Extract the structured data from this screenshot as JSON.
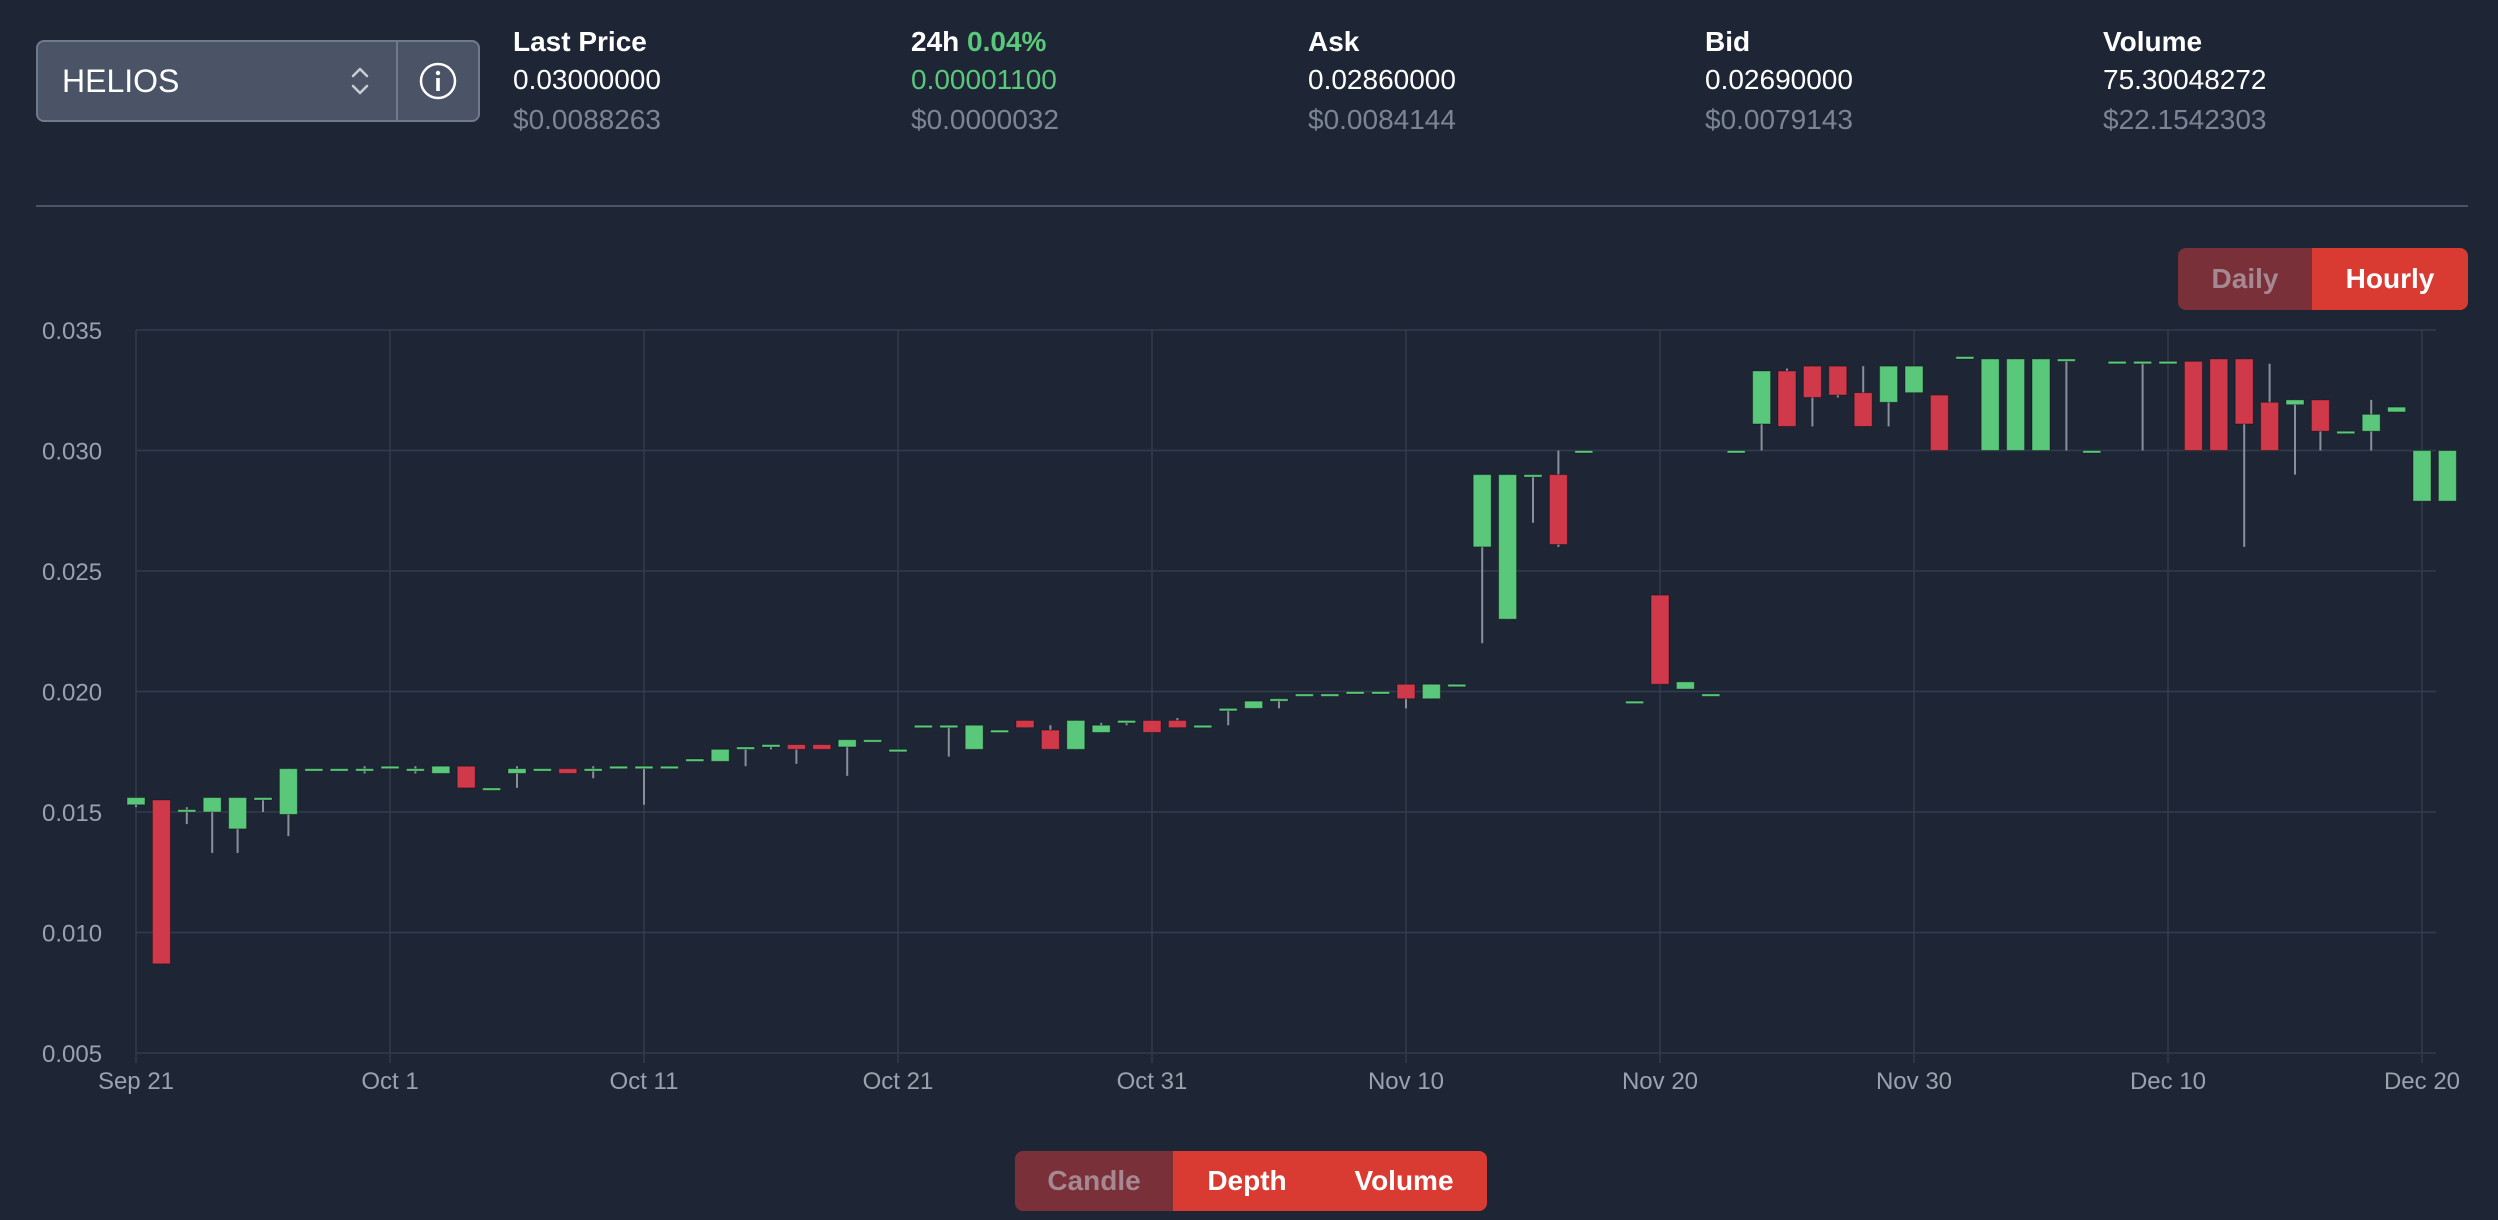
{
  "market": {
    "symbol": "HELIOS"
  },
  "stats": [
    {
      "label": "Last Price",
      "change": "",
      "value": "0.03000000",
      "usd": "$0.0088263",
      "green": false
    },
    {
      "label": "24h",
      "change": "0.04%",
      "value": "0.00001100",
      "usd": "$0.0000032",
      "green": true
    },
    {
      "label": "Ask",
      "change": "",
      "value": "0.02860000",
      "usd": "$0.0084144",
      "green": false
    },
    {
      "label": "Bid",
      "change": "",
      "value": "0.02690000",
      "usd": "$0.0079143",
      "green": false
    },
    {
      "label": "Volume",
      "change": "",
      "value": "75.30048272",
      "usd": "$22.1542303",
      "green": false
    }
  ],
  "interval_toggle": {
    "daily": "Daily",
    "hourly": "Hourly",
    "active": "hourly"
  },
  "chart_view_toggle": {
    "candle": "Candle",
    "depth": "Depth",
    "volume": "Volume",
    "inactive": "candle"
  },
  "colors": {
    "up": "#5ac87a",
    "down": "#d0394a",
    "accent": "#d93b32",
    "background": "#1e2636"
  },
  "chart_data": {
    "type": "candlestick",
    "ylim": [
      0.005,
      0.035
    ],
    "y_ticks": [
      "0.035",
      "0.030",
      "0.025",
      "0.020",
      "0.015",
      "0.010",
      "0.005"
    ],
    "x_ticks": [
      "Sep 21",
      "Oct 1",
      "Oct 11",
      "Oct 21",
      "Oct 31",
      "Nov 10",
      "Nov 20",
      "Nov 30",
      "Dec 10",
      "Dec 20"
    ],
    "grid": true,
    "candles": [
      {
        "date": "Sep 21",
        "open": 0.0153,
        "high": 0.0156,
        "low": 0.0152,
        "close": 0.0156
      },
      {
        "date": "Sep 22",
        "open": 0.0155,
        "high": 0.0155,
        "low": 0.0087,
        "close": 0.0087
      },
      {
        "date": "Sep 23",
        "open": 0.015,
        "high": 0.0152,
        "low": 0.0145,
        "close": 0.0151
      },
      {
        "date": "Sep 24",
        "open": 0.015,
        "high": 0.0156,
        "low": 0.0133,
        "close": 0.0156
      },
      {
        "date": "Sep 25",
        "open": 0.0143,
        "high": 0.0156,
        "low": 0.0133,
        "close": 0.0156
      },
      {
        "date": "Sep 26",
        "open": 0.0155,
        "high": 0.0156,
        "low": 0.015,
        "close": 0.0156
      },
      {
        "date": "Sep 27",
        "open": 0.0149,
        "high": 0.0168,
        "low": 0.014,
        "close": 0.0168
      },
      {
        "date": "Sep 28",
        "open": 0.0168,
        "high": 0.0168,
        "low": 0.0168,
        "close": 0.0168
      },
      {
        "date": "Sep 29",
        "open": 0.0168,
        "high": 0.0168,
        "low": 0.0168,
        "close": 0.0168
      },
      {
        "date": "Sep 30",
        "open": 0.0168,
        "high": 0.0169,
        "low": 0.0166,
        "close": 0.0168
      },
      {
        "date": "Oct 1",
        "open": 0.0169,
        "high": 0.0169,
        "low": 0.0168,
        "close": 0.0169
      },
      {
        "date": "Oct 2",
        "open": 0.0168,
        "high": 0.0169,
        "low": 0.0166,
        "close": 0.0168
      },
      {
        "date": "Oct 3",
        "open": 0.0166,
        "high": 0.0169,
        "low": 0.0166,
        "close": 0.0169
      },
      {
        "date": "Oct 4",
        "open": 0.0169,
        "high": 0.0169,
        "low": 0.016,
        "close": 0.016
      },
      {
        "date": "Oct 5",
        "open": 0.016,
        "high": 0.016,
        "low": 0.016,
        "close": 0.016
      },
      {
        "date": "Oct 6",
        "open": 0.0166,
        "high": 0.0169,
        "low": 0.016,
        "close": 0.0168
      },
      {
        "date": "Oct 7",
        "open": 0.0168,
        "high": 0.0168,
        "low": 0.0168,
        "close": 0.0168
      },
      {
        "date": "Oct 8",
        "open": 0.0168,
        "high": 0.0168,
        "low": 0.0166,
        "close": 0.0166
      },
      {
        "date": "Oct 9",
        "open": 0.0168,
        "high": 0.0169,
        "low": 0.0164,
        "close": 0.0168
      },
      {
        "date": "Oct 10",
        "open": 0.0169,
        "high": 0.0169,
        "low": 0.0168,
        "close": 0.0169
      },
      {
        "date": "Oct 11",
        "open": 0.0169,
        "high": 0.0169,
        "low": 0.0153,
        "close": 0.0169
      },
      {
        "date": "Oct 12",
        "open": 0.0169,
        "high": 0.0169,
        "low": 0.0169,
        "close": 0.0169
      },
      {
        "date": "Oct 13",
        "open": 0.0172,
        "high": 0.0172,
        "low": 0.0172,
        "close": 0.0172
      },
      {
        "date": "Oct 14",
        "open": 0.0171,
        "high": 0.0176,
        "low": 0.0171,
        "close": 0.0176
      },
      {
        "date": "Oct 15",
        "open": 0.0176,
        "high": 0.0177,
        "low": 0.0169,
        "close": 0.0177
      },
      {
        "date": "Oct 16",
        "open": 0.0177,
        "high": 0.0178,
        "low": 0.0176,
        "close": 0.0178
      },
      {
        "date": "Oct 17",
        "open": 0.0178,
        "high": 0.0178,
        "low": 0.017,
        "close": 0.0176
      },
      {
        "date": "Oct 18",
        "open": 0.0178,
        "high": 0.0178,
        "low": 0.0176,
        "close": 0.0176
      },
      {
        "date": "Oct 19",
        "open": 0.0177,
        "high": 0.018,
        "low": 0.0165,
        "close": 0.018
      },
      {
        "date": "Oct 20",
        "open": 0.018,
        "high": 0.018,
        "low": 0.018,
        "close": 0.018
      },
      {
        "date": "Oct 21",
        "open": 0.0176,
        "high": 0.0176,
        "low": 0.0176,
        "close": 0.0176
      },
      {
        "date": "Oct 22",
        "open": 0.0186,
        "high": 0.0186,
        "low": 0.0186,
        "close": 0.0186
      },
      {
        "date": "Oct 23",
        "open": 0.0186,
        "high": 0.0186,
        "low": 0.0173,
        "close": 0.0186
      },
      {
        "date": "Oct 24",
        "open": 0.0176,
        "high": 0.0186,
        "low": 0.0176,
        "close": 0.0186
      },
      {
        "date": "Oct 25",
        "open": 0.0184,
        "high": 0.0184,
        "low": 0.0184,
        "close": 0.0184
      },
      {
        "date": "Oct 26",
        "open": 0.0188,
        "high": 0.0188,
        "low": 0.0185,
        "close": 0.0185
      },
      {
        "date": "Oct 27",
        "open": 0.0184,
        "high": 0.0186,
        "low": 0.0176,
        "close": 0.0176
      },
      {
        "date": "Oct 28",
        "open": 0.0176,
        "high": 0.0188,
        "low": 0.0176,
        "close": 0.0188
      },
      {
        "date": "Oct 29",
        "open": 0.0183,
        "high": 0.0187,
        "low": 0.0183,
        "close": 0.0186
      },
      {
        "date": "Oct 30",
        "open": 0.0188,
        "high": 0.0188,
        "low": 0.0186,
        "close": 0.0188
      },
      {
        "date": "Oct 31",
        "open": 0.0188,
        "high": 0.0188,
        "low": 0.0183,
        "close": 0.0183
      },
      {
        "date": "Nov 1",
        "open": 0.0188,
        "high": 0.0189,
        "low": 0.0185,
        "close": 0.0185
      },
      {
        "date": "Nov 2",
        "open": 0.0186,
        "high": 0.0186,
        "low": 0.0186,
        "close": 0.0186
      },
      {
        "date": "Nov 3",
        "open": 0.0193,
        "high": 0.0193,
        "low": 0.0186,
        "close": 0.0193
      },
      {
        "date": "Nov 4",
        "open": 0.0193,
        "high": 0.0196,
        "low": 0.0193,
        "close": 0.0196
      },
      {
        "date": "Nov 5",
        "open": 0.0196,
        "high": 0.0197,
        "low": 0.0193,
        "close": 0.0197
      },
      {
        "date": "Nov 6",
        "open": 0.0199,
        "high": 0.0199,
        "low": 0.0199,
        "close": 0.0199
      },
      {
        "date": "Nov 7",
        "open": 0.0199,
        "high": 0.0199,
        "low": 0.0199,
        "close": 0.0199
      },
      {
        "date": "Nov 8",
        "open": 0.02,
        "high": 0.02,
        "low": 0.02,
        "close": 0.02
      },
      {
        "date": "Nov 9",
        "open": 0.02,
        "high": 0.02,
        "low": 0.02,
        "close": 0.02
      },
      {
        "date": "Nov 10",
        "open": 0.0203,
        "high": 0.0203,
        "low": 0.0193,
        "close": 0.0197
      },
      {
        "date": "Nov 11",
        "open": 0.0197,
        "high": 0.0203,
        "low": 0.0197,
        "close": 0.0203
      },
      {
        "date": "Nov 12",
        "open": 0.0203,
        "high": 0.0203,
        "low": 0.0203,
        "close": 0.0203
      },
      {
        "date": "Nov 13",
        "open": 0.026,
        "high": 0.029,
        "low": 0.022,
        "close": 0.029
      },
      {
        "date": "Nov 14",
        "open": 0.023,
        "high": 0.029,
        "low": 0.023,
        "close": 0.029
      },
      {
        "date": "Nov 15",
        "open": 0.029,
        "high": 0.029,
        "low": 0.027,
        "close": 0.029
      },
      {
        "date": "Nov 16",
        "open": 0.029,
        "high": 0.03,
        "low": 0.026,
        "close": 0.0261
      },
      {
        "date": "Nov 17",
        "open": 0.03,
        "high": 0.03,
        "low": 0.03,
        "close": 0.03
      },
      {
        "date": "Nov 19",
        "open": 0.0196,
        "high": 0.0196,
        "low": 0.0196,
        "close": 0.0196
      },
      {
        "date": "Nov 20",
        "open": 0.024,
        "high": 0.024,
        "low": 0.0203,
        "close": 0.0203
      },
      {
        "date": "Nov 21",
        "open": 0.0201,
        "high": 0.0204,
        "low": 0.0201,
        "close": 0.0204
      },
      {
        "date": "Nov 22",
        "open": 0.0199,
        "high": 0.0199,
        "low": 0.0199,
        "close": 0.0199
      },
      {
        "date": "Nov 23",
        "open": 0.03,
        "high": 0.03,
        "low": 0.03,
        "close": 0.03
      },
      {
        "date": "Nov 24",
        "open": 0.0311,
        "high": 0.0333,
        "low": 0.03,
        "close": 0.0333
      },
      {
        "date": "Nov 25",
        "open": 0.0333,
        "high": 0.0334,
        "low": 0.031,
        "close": 0.031
      },
      {
        "date": "Nov 26",
        "open": 0.0335,
        "high": 0.0335,
        "low": 0.031,
        "close": 0.0322
      },
      {
        "date": "Nov 27",
        "open": 0.0335,
        "high": 0.0335,
        "low": 0.0322,
        "close": 0.0323
      },
      {
        "date": "Nov 28",
        "open": 0.0324,
        "high": 0.0335,
        "low": 0.031,
        "close": 0.031
      },
      {
        "date": "Nov 29",
        "open": 0.032,
        "high": 0.0335,
        "low": 0.031,
        "close": 0.0335
      },
      {
        "date": "Nov 30",
        "open": 0.0324,
        "high": 0.0335,
        "low": 0.0324,
        "close": 0.0335
      },
      {
        "date": "Dec 1",
        "open": 0.0323,
        "high": 0.0323,
        "low": 0.03,
        "close": 0.03
      },
      {
        "date": "Dec 2",
        "open": 0.0339,
        "high": 0.0339,
        "low": 0.0339,
        "close": 0.0339
      },
      {
        "date": "Dec 3",
        "open": 0.03,
        "high": 0.0338,
        "low": 0.03,
        "close": 0.0338
      },
      {
        "date": "Dec 4",
        "open": 0.03,
        "high": 0.0338,
        "low": 0.03,
        "close": 0.0338
      },
      {
        "date": "Dec 5",
        "open": 0.03,
        "high": 0.0338,
        "low": 0.03,
        "close": 0.0338
      },
      {
        "date": "Dec 6",
        "open": 0.0338,
        "high": 0.0338,
        "low": 0.03,
        "close": 0.0338
      },
      {
        "date": "Dec 7",
        "open": 0.03,
        "high": 0.03,
        "low": 0.03,
        "close": 0.03
      },
      {
        "date": "Dec 8",
        "open": 0.0337,
        "high": 0.0337,
        "low": 0.0337,
        "close": 0.0337
      },
      {
        "date": "Dec 9",
        "open": 0.0337,
        "high": 0.0337,
        "low": 0.03,
        "close": 0.0337
      },
      {
        "date": "Dec 10",
        "open": 0.0337,
        "high": 0.0337,
        "low": 0.0337,
        "close": 0.0337
      },
      {
        "date": "Dec 11",
        "open": 0.0337,
        "high": 0.0337,
        "low": 0.03,
        "close": 0.03
      },
      {
        "date": "Dec 12",
        "open": 0.0338,
        "high": 0.0338,
        "low": 0.03,
        "close": 0.03
      },
      {
        "date": "Dec 13",
        "open": 0.0338,
        "high": 0.0338,
        "low": 0.026,
        "close": 0.0311
      },
      {
        "date": "Dec 14",
        "open": 0.032,
        "high": 0.0336,
        "low": 0.03,
        "close": 0.03
      },
      {
        "date": "Dec 15",
        "open": 0.0319,
        "high": 0.0321,
        "low": 0.029,
        "close": 0.0321
      },
      {
        "date": "Dec 16",
        "open": 0.0321,
        "high": 0.0321,
        "low": 0.03,
        "close": 0.0308
      },
      {
        "date": "Dec 17",
        "open": 0.0308,
        "high": 0.0308,
        "low": 0.0308,
        "close": 0.0308
      },
      {
        "date": "Dec 18",
        "open": 0.0308,
        "high": 0.0321,
        "low": 0.03,
        "close": 0.0315
      },
      {
        "date": "Dec 19",
        "open": 0.0316,
        "high": 0.0318,
        "low": 0.0316,
        "close": 0.0318
      },
      {
        "date": "Dec 20",
        "open": 0.0279,
        "high": 0.03,
        "low": 0.0279,
        "close": 0.03
      },
      {
        "date": "Dec 21",
        "open": 0.0279,
        "high": 0.03,
        "low": 0.0279,
        "close": 0.03
      }
    ]
  }
}
